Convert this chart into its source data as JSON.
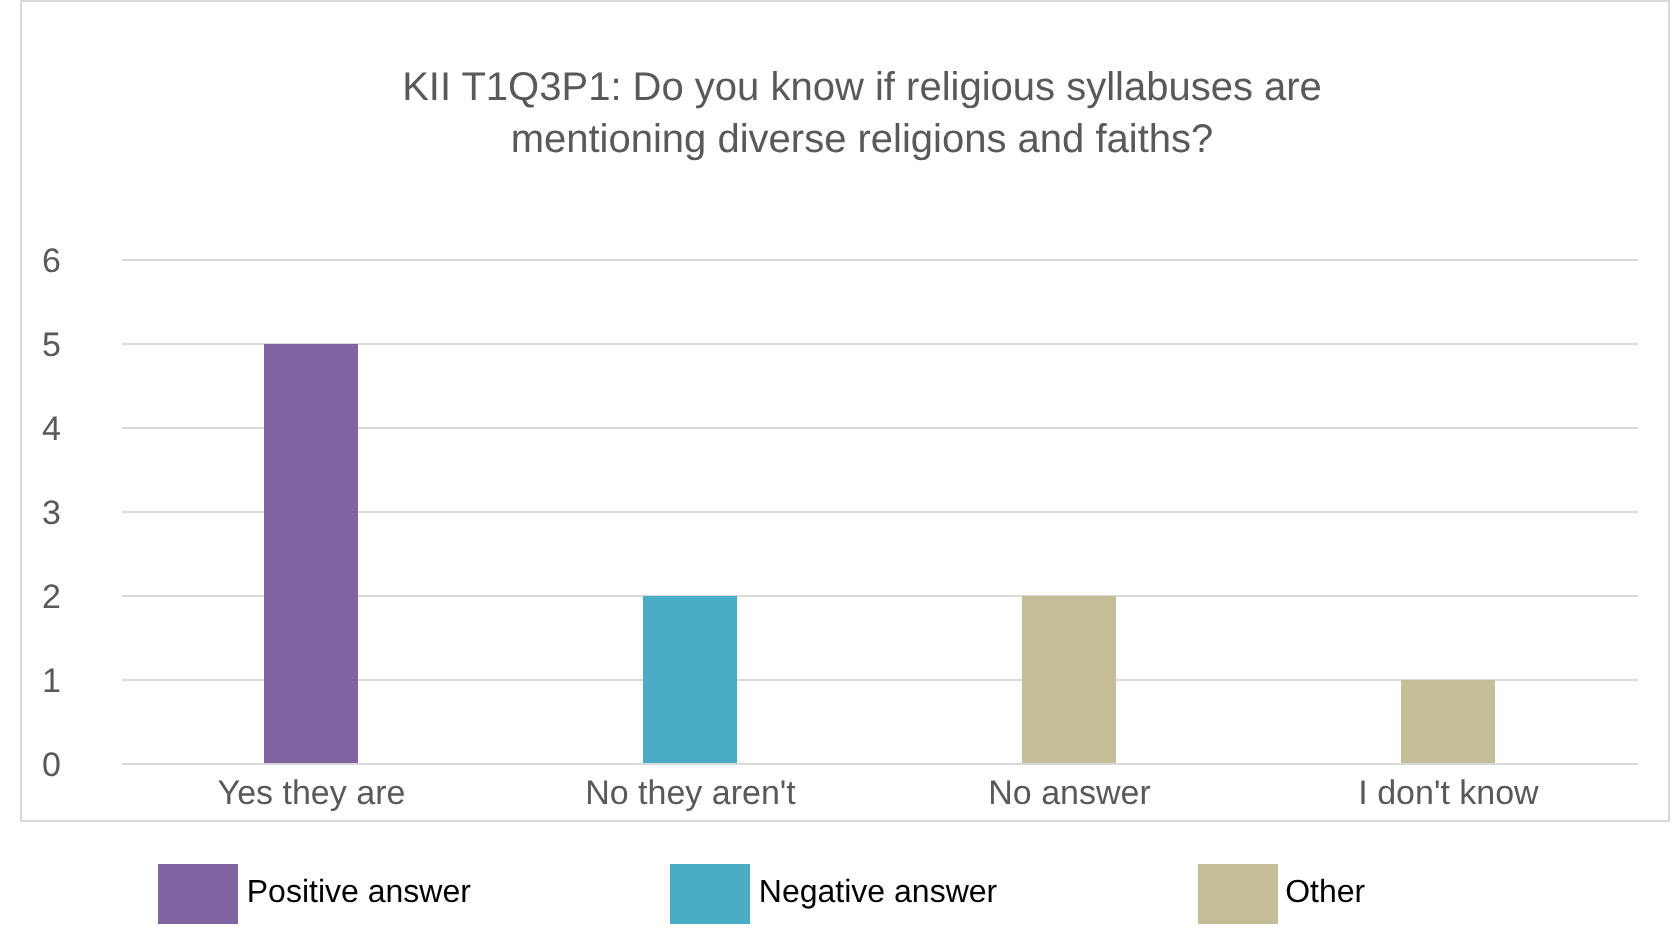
{
  "chart_data": {
    "type": "bar",
    "title": "KII T1Q3P1: Do you know if religious syllabuses are mentioning diverse religions and faiths?",
    "categories": [
      "Yes they are",
      "No they aren't",
      "No answer",
      "I don't know"
    ],
    "stacked": true,
    "series": [
      {
        "name": "Positive answer",
        "color": "#8064a2",
        "values": [
          5,
          null,
          null,
          null
        ]
      },
      {
        "name": "Negative answer",
        "color": "#4bacc6",
        "values": [
          null,
          2,
          null,
          null
        ]
      },
      {
        "name": "Other",
        "color": "#c4bd97",
        "values": [
          null,
          null,
          2,
          1
        ]
      }
    ],
    "ylim": [
      0,
      6
    ],
    "yticks": [
      0,
      1,
      2,
      3,
      4,
      5,
      6
    ],
    "grid": "y",
    "legend": "bottom"
  }
}
